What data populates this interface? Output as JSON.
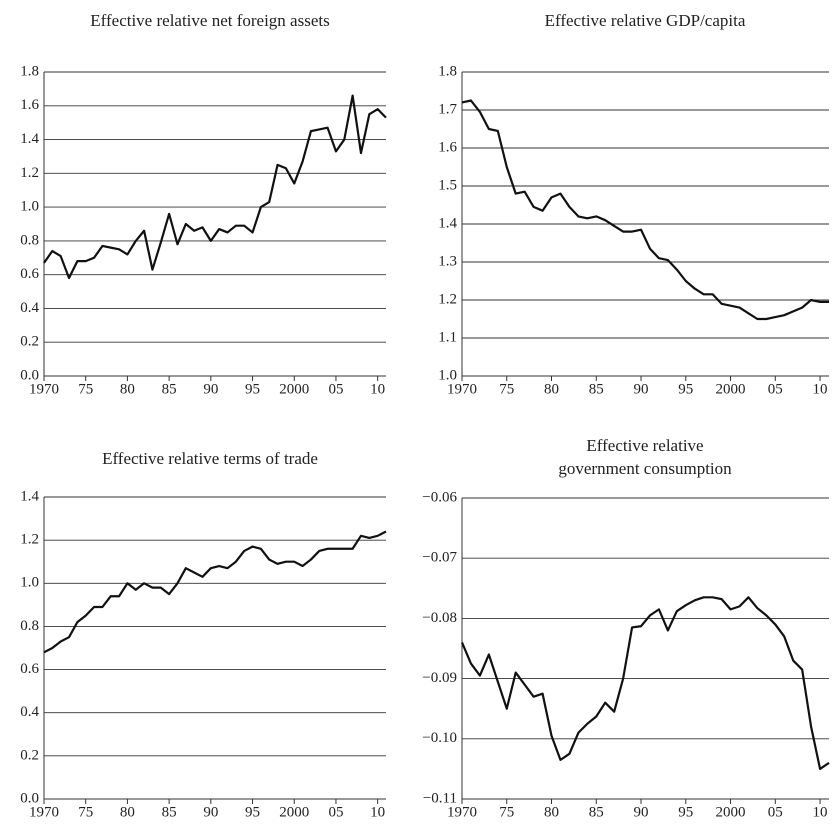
{
  "chart_data": [
    {
      "type": "line",
      "title": [
        "Effective relative net foreign assets"
      ],
      "x": [
        1970,
        1971,
        1972,
        1973,
        1974,
        1975,
        1976,
        1977,
        1978,
        1979,
        1980,
        1981,
        1982,
        1983,
        1984,
        1985,
        1986,
        1987,
        1988,
        1989,
        1990,
        1991,
        1992,
        1993,
        1994,
        1995,
        1996,
        1997,
        1998,
        1999,
        2000,
        2001,
        2002,
        2003,
        2004,
        2005,
        2006,
        2007,
        2008,
        2009,
        2010,
        2011
      ],
      "series": [
        {
          "color": "#111111",
          "values": [
            0.67,
            0.74,
            0.71,
            0.58,
            0.68,
            0.68,
            0.7,
            0.77,
            0.76,
            0.75,
            0.72,
            0.8,
            0.86,
            0.63,
            0.79,
            0.96,
            0.78,
            0.9,
            0.86,
            0.88,
            0.8,
            0.87,
            0.85,
            0.89,
            0.89,
            0.85,
            1.0,
            1.03,
            1.25,
            1.23,
            1.14,
            1.27,
            1.45,
            1.46,
            1.47,
            1.33,
            1.4,
            1.66,
            1.32,
            1.55,
            1.58,
            1.53
          ]
        }
      ],
      "xlim": [
        1970,
        2011
      ],
      "xticks": [
        1970,
        {
          "value": 1975,
          "label": "75"
        },
        {
          "value": 1980,
          "label": "80"
        },
        {
          "value": 1985,
          "label": "85"
        },
        {
          "value": 1990,
          "label": "90"
        },
        {
          "value": 1995,
          "label": "95"
        },
        2000,
        {
          "value": 2005,
          "label": "05"
        },
        {
          "value": 2010,
          "label": "10"
        }
      ],
      "ylim": [
        0,
        1.8
      ],
      "yticks": [
        {
          "value": 0,
          "label": "0.0"
        },
        0.2,
        0.4,
        0.6,
        0.8,
        {
          "value": 1,
          "label": "1.0"
        },
        1.2,
        1.4,
        1.6,
        1.8
      ],
      "grid": true
    },
    {
      "type": "line",
      "title": [
        "Effective relative GDP/capita"
      ],
      "x": [
        1970,
        1971,
        1972,
        1973,
        1974,
        1975,
        1976,
        1977,
        1978,
        1979,
        1980,
        1981,
        1982,
        1983,
        1984,
        1985,
        1986,
        1987,
        1988,
        1989,
        1990,
        1991,
        1992,
        1993,
        1994,
        1995,
        1996,
        1997,
        1998,
        1999,
        2000,
        2001,
        2002,
        2003,
        2004,
        2005,
        2006,
        2007,
        2008,
        2009,
        2010,
        2011
      ],
      "series": [
        {
          "color": "#111111",
          "values": [
            1.72,
            1.725,
            1.695,
            1.65,
            1.645,
            1.55,
            1.48,
            1.485,
            1.445,
            1.435,
            1.47,
            1.48,
            1.445,
            1.42,
            1.415,
            1.42,
            1.41,
            1.395,
            1.38,
            1.38,
            1.385,
            1.335,
            1.31,
            1.305,
            1.28,
            1.25,
            1.23,
            1.215,
            1.215,
            1.19,
            1.185,
            1.18,
            1.165,
            1.15,
            1.15,
            1.155,
            1.16,
            1.17,
            1.18,
            1.2,
            1.195,
            1.195
          ]
        }
      ],
      "xlim": [
        1970,
        2011
      ],
      "xticks": [
        1970,
        {
          "value": 1975,
          "label": "75"
        },
        {
          "value": 1980,
          "label": "80"
        },
        {
          "value": 1985,
          "label": "85"
        },
        {
          "value": 1990,
          "label": "90"
        },
        {
          "value": 1995,
          "label": "95"
        },
        2000,
        {
          "value": 2005,
          "label": "05"
        },
        {
          "value": 2010,
          "label": "10"
        }
      ],
      "ylim": [
        1,
        1.8
      ],
      "yticks": [
        {
          "value": 1,
          "label": "1.0"
        },
        1.1,
        1.2,
        1.3,
        1.4,
        1.5,
        1.6,
        1.7,
        1.8
      ],
      "grid": true
    },
    {
      "type": "line",
      "title": [
        "Effective relative terms of trade"
      ],
      "x": [
        1970,
        1971,
        1972,
        1973,
        1974,
        1975,
        1976,
        1977,
        1978,
        1979,
        1980,
        1981,
        1982,
        1983,
        1984,
        1985,
        1986,
        1987,
        1988,
        1989,
        1990,
        1991,
        1992,
        1993,
        1994,
        1995,
        1996,
        1997,
        1998,
        1999,
        2000,
        2001,
        2002,
        2003,
        2004,
        2005,
        2006,
        2007,
        2008,
        2009,
        2010,
        2011
      ],
      "series": [
        {
          "color": "#111111",
          "values": [
            0.68,
            0.7,
            0.73,
            0.75,
            0.82,
            0.85,
            0.89,
            0.89,
            0.94,
            0.94,
            1.0,
            0.97,
            1.0,
            0.98,
            0.98,
            0.95,
            1.0,
            1.07,
            1.05,
            1.03,
            1.07,
            1.08,
            1.07,
            1.1,
            1.15,
            1.17,
            1.16,
            1.11,
            1.09,
            1.1,
            1.1,
            1.08,
            1.11,
            1.15,
            1.16,
            1.16,
            1.16,
            1.16,
            1.22,
            1.21,
            1.22,
            1.24
          ]
        }
      ],
      "xlim": [
        1970,
        2011
      ],
      "xticks": [
        1970,
        {
          "value": 1975,
          "label": "75"
        },
        {
          "value": 1980,
          "label": "80"
        },
        {
          "value": 1985,
          "label": "85"
        },
        {
          "value": 1990,
          "label": "90"
        },
        {
          "value": 1995,
          "label": "95"
        },
        2000,
        {
          "value": 2005,
          "label": "05"
        },
        {
          "value": 2010,
          "label": "10"
        }
      ],
      "ylim": [
        0,
        1.4
      ],
      "yticks": [
        {
          "value": 0,
          "label": "0.0"
        },
        0.2,
        0.4,
        0.6,
        0.8,
        {
          "value": 1,
          "label": "1.0"
        },
        1.2,
        1.4
      ],
      "grid": true
    },
    {
      "type": "line",
      "title": [
        "Effective relative",
        "government consumption"
      ],
      "x": [
        1970,
        1971,
        1972,
        1973,
        1974,
        1975,
        1976,
        1977,
        1978,
        1979,
        1980,
        1981,
        1982,
        1983,
        1984,
        1985,
        1986,
        1987,
        1988,
        1989,
        1990,
        1991,
        1992,
        1993,
        1994,
        1995,
        1996,
        1997,
        1998,
        1999,
        2000,
        2001,
        2002,
        2003,
        2004,
        2005,
        2006,
        2007,
        2008,
        2009,
        2010,
        2011
      ],
      "series": [
        {
          "color": "#111111",
          "values": [
            -0.084,
            -0.0875,
            -0.0895,
            -0.086,
            -0.0905,
            -0.095,
            -0.089,
            -0.091,
            -0.093,
            -0.0925,
            -0.0995,
            -0.1035,
            -0.1025,
            -0.099,
            -0.0975,
            -0.0963,
            -0.094,
            -0.0955,
            -0.09,
            -0.0815,
            -0.0813,
            -0.0795,
            -0.0785,
            -0.082,
            -0.0788,
            -0.0778,
            -0.077,
            -0.0765,
            -0.0765,
            -0.0768,
            -0.0785,
            -0.078,
            -0.0765,
            -0.0783,
            -0.0795,
            -0.081,
            -0.083,
            -0.087,
            -0.0885,
            -0.098,
            -0.105,
            -0.104
          ]
        }
      ],
      "xlim": [
        1970,
        2011
      ],
      "xticks": [
        1970,
        {
          "value": 1975,
          "label": "75"
        },
        {
          "value": 1980,
          "label": "80"
        },
        {
          "value": 1985,
          "label": "85"
        },
        {
          "value": 1990,
          "label": "90"
        },
        {
          "value": 1995,
          "label": "95"
        },
        2000,
        {
          "value": 2005,
          "label": "05"
        },
        {
          "value": 2010,
          "label": "10"
        }
      ],
      "ylim": [
        -0.11,
        -0.06
      ],
      "yticks": [
        {
          "value": -0.11,
          "label": "−0.11"
        },
        {
          "value": -0.1,
          "label": "−0.10"
        },
        {
          "value": -0.09,
          "label": "−0.09"
        },
        {
          "value": -0.08,
          "label": "−0.08"
        },
        {
          "value": -0.07,
          "label": "−0.07"
        },
        {
          "value": -0.06,
          "label": "−0.06"
        }
      ],
      "grid": true
    }
  ]
}
